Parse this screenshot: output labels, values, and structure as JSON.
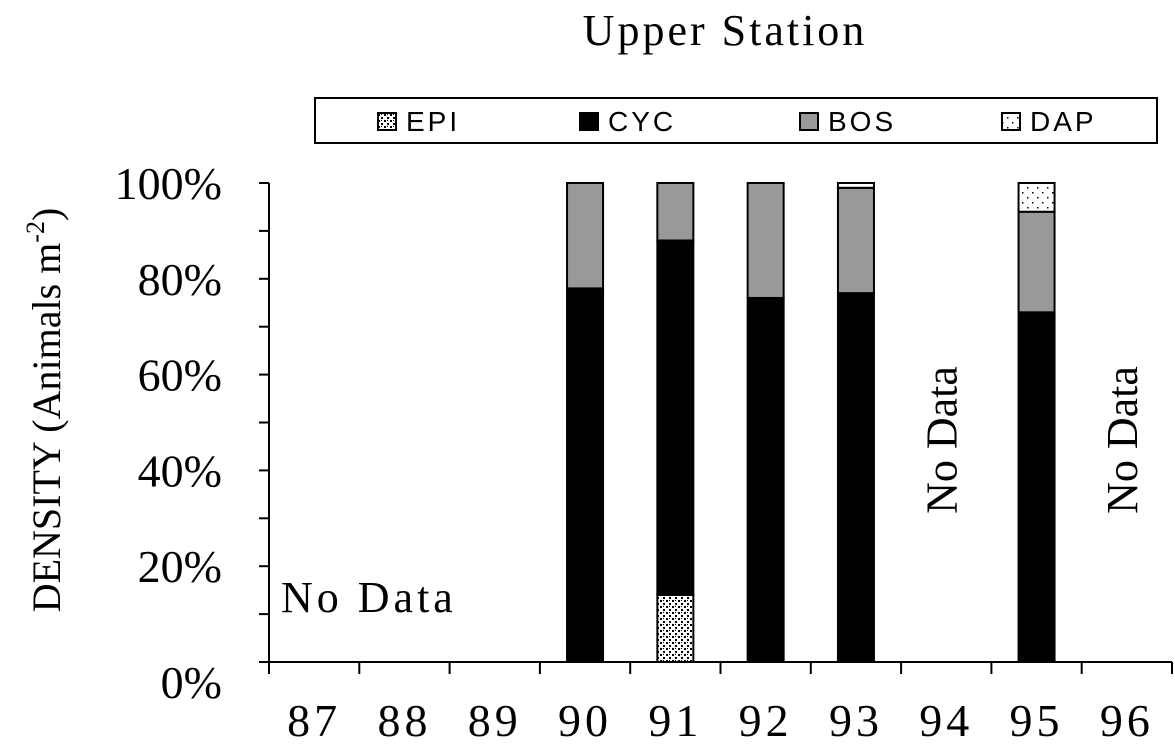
{
  "chart_data": {
    "type": "bar",
    "stacked": "percent",
    "title": "Upper Station",
    "ylabel": "DENSITY (Animals m",
    "ylabel_superscript": "-2",
    "ylabel_suffix": ")",
    "ylim": [
      0,
      100
    ],
    "yticks": [
      "0%",
      "20%",
      "40%",
      "60%",
      "80%",
      "100%"
    ],
    "categories": [
      "87",
      "88",
      "89",
      "90",
      "91",
      "92",
      "93",
      "94",
      "95",
      "96"
    ],
    "series": [
      {
        "name": "EPI",
        "values": [
          0,
          0,
          0,
          0,
          14,
          0,
          0,
          0,
          0,
          0
        ]
      },
      {
        "name": "CYC",
        "values": [
          0,
          0,
          0,
          78,
          74,
          76,
          77,
          0,
          73,
          0
        ]
      },
      {
        "name": "BOS",
        "values": [
          0,
          0,
          0,
          22,
          12,
          24,
          22,
          0,
          21,
          0
        ]
      },
      {
        "name": "DAP",
        "values": [
          0,
          0,
          0,
          0,
          0,
          0,
          1,
          0,
          6,
          0
        ]
      }
    ],
    "series_styles": {
      "EPI": {
        "fill": "#ffffff",
        "pattern": "dense-dots",
        "color": "#000000"
      },
      "CYC": {
        "fill": "#000000"
      },
      "BOS": {
        "fill": "#999999"
      },
      "DAP": {
        "fill": "#ffffff",
        "pattern": "sparse-dots",
        "color": "#000000"
      }
    },
    "legend": {
      "position": "top",
      "entries": [
        "EPI",
        "CYC",
        "BOS",
        "DAP"
      ]
    },
    "annotations": [
      {
        "text": "No Data",
        "category_range": [
          "87",
          "89"
        ],
        "orientation": "horizontal"
      },
      {
        "text": "No Data",
        "category": "94",
        "orientation": "vertical"
      },
      {
        "text": "No Data",
        "category": "96",
        "orientation": "vertical"
      }
    ],
    "grid": false
  }
}
